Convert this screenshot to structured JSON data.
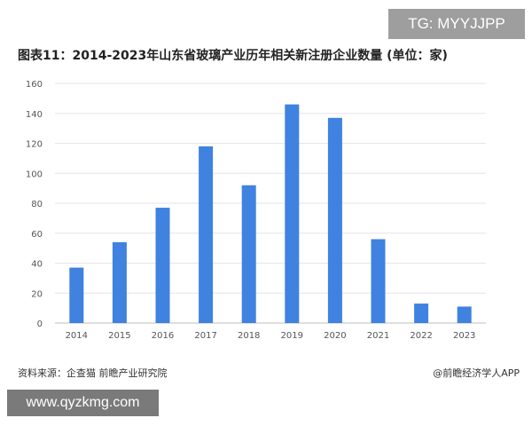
{
  "overlay_tag": "TG: MYYJJPP",
  "title": "图表11：2014-2023年山东省玻璃产业历年相关新注册企业数量 (单位：家)",
  "footer": {
    "source": "资料来源：企查猫 前瞻产业研究院",
    "brand": "@前瞻经济学人APP"
  },
  "watermark_url": "www.qyzkmg.com",
  "colors": {
    "bar": "#3f82e0",
    "grid": "#e6e6e6",
    "axis": "#bfbfbf",
    "tick_text": "#555555"
  },
  "chart_data": {
    "type": "bar",
    "categories": [
      "2014",
      "2015",
      "2016",
      "2017",
      "2018",
      "2019",
      "2020",
      "2021",
      "2022",
      "2023"
    ],
    "values": [
      37,
      54,
      77,
      118,
      92,
      146,
      137,
      56,
      13,
      11
    ],
    "title": "图表11：2014-2023年山东省玻璃产业历年相关新注册企业数量 (单位：家)",
    "xlabel": "",
    "ylabel": "",
    "ylim": [
      0,
      160
    ],
    "yticks": [
      0,
      20,
      40,
      60,
      80,
      100,
      120,
      140,
      160
    ],
    "grid": true,
    "legend": "none"
  }
}
